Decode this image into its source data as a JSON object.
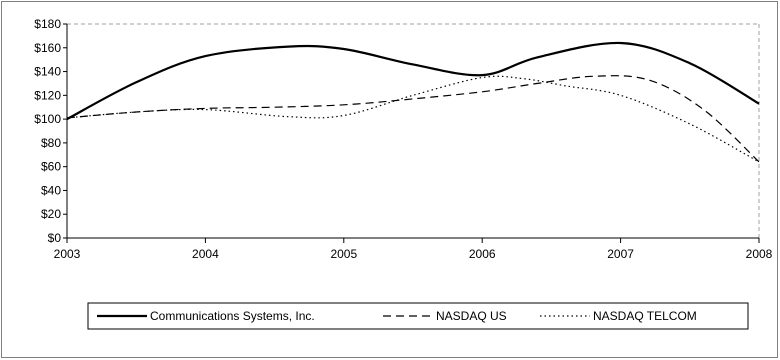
{
  "chart_data": {
    "type": "line",
    "x": [
      2003,
      2004,
      2005,
      2006,
      2007,
      2008
    ],
    "x_tick_labels": [
      "2003",
      "2004",
      "2005",
      "2006",
      "2007",
      "2008"
    ],
    "y_tick_labels": [
      "$0",
      "$20",
      "$40",
      "$60",
      "$80",
      "$100",
      "$120",
      "$140",
      "$160",
      "$180"
    ],
    "ylim": [
      0,
      180
    ],
    "xlim": [
      2003,
      2008
    ],
    "grid": false,
    "legend_position": "bottom",
    "series": [
      {
        "name": "Communications Systems, Inc.",
        "style": "solid",
        "color": "#000000",
        "points": [
          [
            2003,
            100
          ],
          [
            2003.5,
            131
          ],
          [
            2004,
            153
          ],
          [
            2004.6,
            161
          ],
          [
            2005,
            159
          ],
          [
            2005.5,
            146
          ],
          [
            2006,
            137
          ],
          [
            2006.4,
            152
          ],
          [
            2007,
            164
          ],
          [
            2007.5,
            147
          ],
          [
            2008,
            113
          ]
        ]
      },
      {
        "name": "NASDAQ US",
        "style": "dashed",
        "color": "#000000",
        "points": [
          [
            2003,
            101
          ],
          [
            2003.5,
            106
          ],
          [
            2004,
            109
          ],
          [
            2004.5,
            110
          ],
          [
            2005,
            112
          ],
          [
            2005.5,
            117
          ],
          [
            2006,
            123
          ],
          [
            2006.4,
            130
          ],
          [
            2006.8,
            136
          ],
          [
            2007.2,
            133
          ],
          [
            2007.6,
            108
          ],
          [
            2008,
            64
          ]
        ]
      },
      {
        "name": "NASDAQ TELCOM",
        "style": "dotted",
        "color": "#000000",
        "points": [
          [
            2003,
            101
          ],
          [
            2003.5,
            106
          ],
          [
            2004,
            108
          ],
          [
            2004.6,
            102
          ],
          [
            2005,
            103
          ],
          [
            2005.5,
            120
          ],
          [
            2006,
            135
          ],
          [
            2006.3,
            134
          ],
          [
            2006.6,
            128
          ],
          [
            2007,
            120
          ],
          [
            2007.5,
            96
          ],
          [
            2008,
            64
          ]
        ]
      }
    ]
  }
}
